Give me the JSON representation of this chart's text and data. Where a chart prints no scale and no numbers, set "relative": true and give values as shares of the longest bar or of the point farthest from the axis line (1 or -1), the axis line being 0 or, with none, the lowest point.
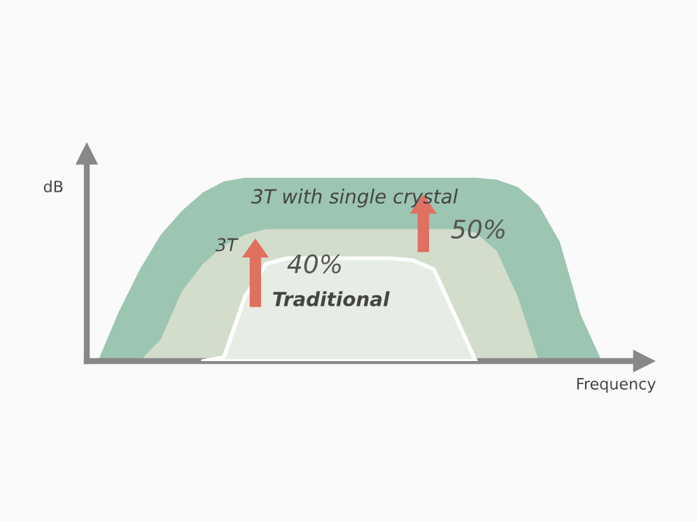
{
  "chart_data": {
    "type": "area",
    "relative": true,
    "xlabel": "Frequency",
    "ylabel": "dB",
    "categories": [
      null,
      null,
      null,
      null,
      null,
      null,
      null,
      null,
      null,
      null,
      null,
      null,
      null,
      null,
      null,
      null,
      null,
      null,
      null,
      null,
      null,
      null,
      null,
      null,
      null
    ],
    "series": [
      {
        "name": "3T with single crystal",
        "color": "#9cc5b2",
        "values": [
          0,
          0.27,
          0.5,
          0.69,
          0.82,
          0.92,
          0.98,
          1,
          1,
          1,
          1,
          1,
          1,
          1,
          1,
          1,
          1,
          1,
          1,
          0.99,
          0.95,
          0.85,
          0.65,
          0.25,
          0
        ]
      },
      {
        "name": "3T",
        "color": "#d3ddcc",
        "values": [
          null,
          null,
          0,
          0.12,
          0.38,
          0.53,
          0.63,
          0.69,
          0.72,
          0.72,
          0.72,
          0.72,
          0.72,
          0.72,
          0.72,
          0.72,
          0.72,
          0.72,
          0.7,
          0.6,
          0.35,
          0,
          null,
          null,
          null
        ]
      },
      {
        "name": "Traditional",
        "color": "#e6ede4",
        "values": [
          null,
          null,
          null,
          null,
          null,
          0,
          0.02,
          0.35,
          0.53,
          0.56,
          0.56,
          0.56,
          0.56,
          0.56,
          0.56,
          0.55,
          0.5,
          0.25,
          0,
          null,
          null,
          null,
          null,
          null,
          null
        ]
      }
    ],
    "annotations": [
      "40%",
      "50%"
    ]
  }
}
